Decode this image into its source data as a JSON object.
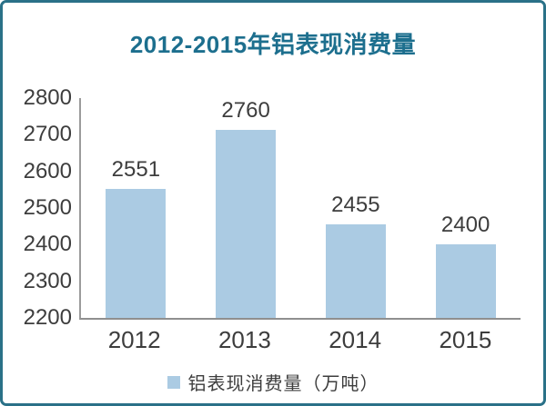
{
  "chart_data": {
    "type": "bar",
    "title": "2012-2015年铝表现消费量",
    "categories": [
      "2012",
      "2013",
      "2014",
      "2015"
    ],
    "values": [
      2551,
      2760,
      2455,
      2400
    ],
    "ylim": [
      2200,
      2800
    ],
    "ytick_step": 100,
    "yticks": [
      2800,
      2700,
      2600,
      2500,
      2400,
      2300,
      2200
    ],
    "xlabel": "",
    "ylabel": "",
    "grid": false,
    "legend": "铝表现消费量（万吨）",
    "legend_position": "bottom",
    "data_labels_shown": true,
    "colors": {
      "bar": "#abcbe3",
      "title": "#1d6f8e",
      "frame_border": "#2a7188",
      "axis_line": "#8f8f8f",
      "text": "#3d3d3d"
    }
  }
}
